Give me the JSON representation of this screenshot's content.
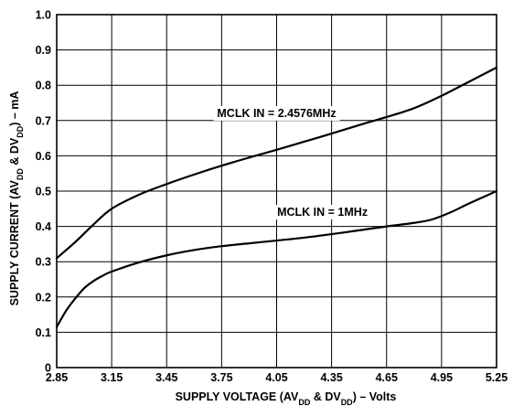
{
  "chart_data": {
    "type": "line",
    "title": "",
    "xlabel": {
      "parts": [
        {
          "text": "SUPPLY VOLTAGE (AV",
          "sub": false
        },
        {
          "text": "DD",
          "sub": true
        },
        {
          "text": " & DV",
          "sub": false
        },
        {
          "text": "DD",
          "sub": true
        },
        {
          "text": ") – Volts",
          "sub": false
        }
      ]
    },
    "ylabel": {
      "parts": [
        {
          "text": "SUPPLY CURRENT (AV",
          "sub": false
        },
        {
          "text": "DD",
          "sub": true
        },
        {
          "text": " & DV",
          "sub": false
        },
        {
          "text": "DD",
          "sub": true
        },
        {
          "text": ") – mA",
          "sub": false
        }
      ]
    },
    "xlim": [
      2.85,
      5.25
    ],
    "ylim": [
      0,
      1.0
    ],
    "x_ticks": [
      2.85,
      3.15,
      3.45,
      3.75,
      4.05,
      4.35,
      4.65,
      4.95,
      5.25
    ],
    "x_tick_labels": [
      "2.85",
      "3.15",
      "3.45",
      "3.75",
      "4.05",
      "4.35",
      "4.65",
      "4.95",
      "5.25"
    ],
    "y_ticks": [
      0,
      0.1,
      0.2,
      0.3,
      0.4,
      0.5,
      0.6,
      0.7,
      0.8,
      0.9,
      1.0
    ],
    "y_tick_labels": [
      "0",
      "0.1",
      "0.2",
      "0.3",
      "0.4",
      "0.5",
      "0.6",
      "0.7",
      "0.8",
      "0.9",
      "1.0"
    ],
    "grid": true,
    "series": [
      {
        "name": "MCLK IN = 2.4576MHz",
        "label_at": [
          4.05,
          0.71
        ],
        "x": [
          2.85,
          2.95,
          3.05,
          3.15,
          3.3,
          3.45,
          3.6,
          3.75,
          3.9,
          4.05,
          4.2,
          4.35,
          4.5,
          4.65,
          4.8,
          4.95,
          5.1,
          5.25
        ],
        "y": [
          0.31,
          0.355,
          0.405,
          0.45,
          0.49,
          0.52,
          0.547,
          0.572,
          0.595,
          0.617,
          0.64,
          0.663,
          0.687,
          0.71,
          0.735,
          0.77,
          0.81,
          0.85
        ]
      },
      {
        "name": "MCLK IN = 1MHz",
        "label_at": [
          4.3,
          0.43
        ],
        "x": [
          2.85,
          2.9,
          2.95,
          3.0,
          3.05,
          3.1,
          3.15,
          3.3,
          3.45,
          3.6,
          3.75,
          3.9,
          4.05,
          4.2,
          4.35,
          4.5,
          4.65,
          4.8,
          4.9,
          5.0,
          5.1,
          5.25
        ],
        "y": [
          0.115,
          0.16,
          0.195,
          0.225,
          0.245,
          0.26,
          0.272,
          0.298,
          0.318,
          0.333,
          0.344,
          0.352,
          0.36,
          0.368,
          0.378,
          0.389,
          0.4,
          0.41,
          0.42,
          0.44,
          0.465,
          0.5
        ]
      }
    ]
  }
}
